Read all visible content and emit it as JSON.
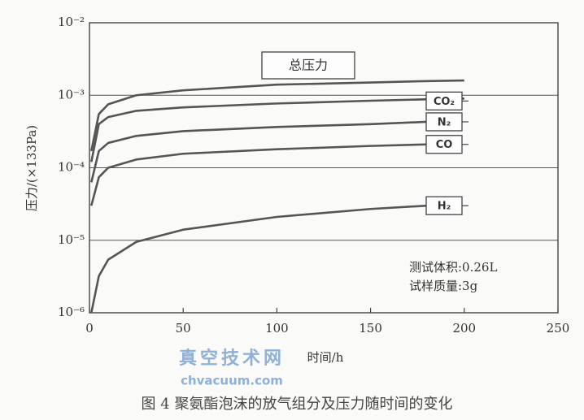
{
  "chart_data": {
    "type": "line",
    "title": "图 4   聚氨酯泡沫的放气组分及压力随时间的变化",
    "x_label": "时间/h",
    "y_label": "压力/(×133Pa)",
    "annotations": [
      "测试体积:0.26L",
      "试样质量:3g"
    ],
    "watermark": [
      "真空技术网",
      "chvacuum.com"
    ],
    "log_y": true,
    "grid": true,
    "xlim": [
      0,
      250
    ],
    "xticks": [
      0,
      50,
      100,
      150,
      200,
      250
    ],
    "ylim": [
      1e-06,
      0.01
    ],
    "yticks": [
      {
        "value": 1e-06,
        "label": "10⁻⁶"
      },
      {
        "value": 1e-05,
        "label": "10⁻⁵"
      },
      {
        "value": 0.0001,
        "label": "10⁻⁴"
      },
      {
        "value": 0.001,
        "label": "10⁻³"
      },
      {
        "value": 0.01,
        "label": "10⁻²"
      }
    ],
    "x": [
      1,
      5,
      10,
      25,
      50,
      100,
      150,
      180,
      200
    ],
    "series": [
      {
        "name": "总压力",
        "color": "#555555",
        "values": [
          0.00017,
          0.00055,
          0.00075,
          0.001,
          0.00117,
          0.0014,
          0.0015,
          0.00157,
          0.0016
        ]
      },
      {
        "name": "CO₂",
        "color": "#555555",
        "values": [
          0.00012,
          0.0004,
          0.0005,
          0.00061,
          0.00068,
          0.00077,
          0.00084,
          0.00088,
          0.0009
        ]
      },
      {
        "name": "N₂",
        "color": "#555555",
        "values": [
          6.3e-05,
          0.00017,
          0.00022,
          0.000275,
          0.00032,
          0.000365,
          0.0004,
          0.00043,
          null
        ]
      },
      {
        "name": "CO",
        "color": "#555555",
        "values": [
          3e-05,
          7.4e-05,
          0.0001,
          0.00013,
          0.000156,
          0.00018,
          0.0002,
          0.00021,
          null
        ]
      },
      {
        "name": "H₂",
        "color": "#555555",
        "values": [
          1e-06,
          3.2e-06,
          5.4e-06,
          9.5e-06,
          1.4e-05,
          2.1e-05,
          2.7e-05,
          3e-05,
          null
        ]
      }
    ]
  }
}
